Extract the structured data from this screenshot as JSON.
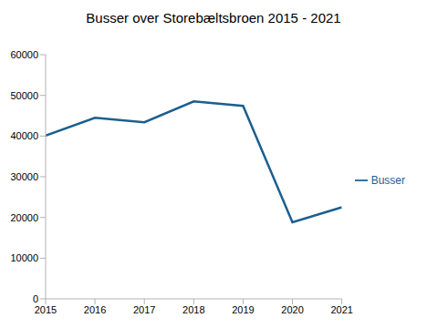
{
  "chart_data": {
    "type": "line",
    "title": "Busser over Storebæltsbroen 2015 - 2021",
    "x": [
      2015,
      2016,
      2017,
      2018,
      2019,
      2020,
      2021
    ],
    "series": [
      {
        "name": "Busser",
        "color": "#1b5f8f",
        "values": [
          40100,
          44500,
          43400,
          48500,
          47400,
          18800,
          22500
        ]
      }
    ],
    "xlim": [
      2015,
      2021
    ],
    "xticks": [
      2015,
      2016,
      2017,
      2018,
      2019,
      2020,
      2021
    ],
    "ylim": [
      0,
      60000
    ],
    "yticks": [
      0,
      10000,
      20000,
      30000,
      40000,
      50000,
      60000
    ],
    "grid": false,
    "legend": "right"
  }
}
